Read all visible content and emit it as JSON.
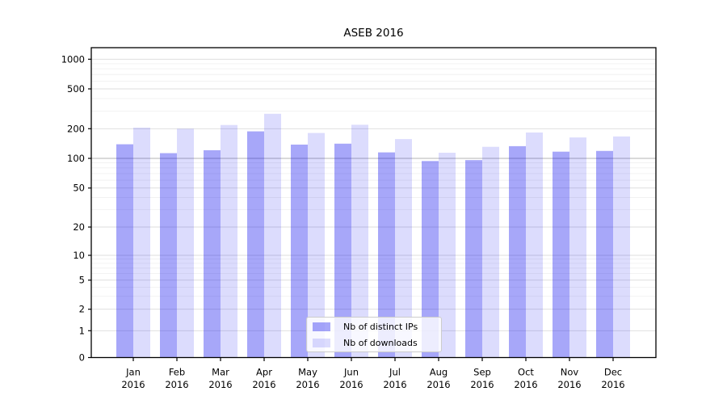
{
  "figure_title": "ASEB 2016",
  "chart_data": {
    "type": "bar",
    "title": "ASEB 2016",
    "xlabel": "",
    "ylabel": "",
    "categories": [
      "Jan 2016",
      "Feb 2016",
      "Mar 2016",
      "Apr 2016",
      "May 2016",
      "Jun 2016",
      "Jul 2016",
      "Aug 2016",
      "Sep 2016",
      "Oct 2016",
      "Nov 2016",
      "Dec 2016"
    ],
    "series": [
      {
        "name": "Nb of distinct IPs",
        "opacity": 0.345,
        "values": [
          139,
          113,
          121,
          188,
          138,
          141,
          115,
          94,
          96,
          133,
          117,
          119
        ]
      },
      {
        "name": "Nb of downloads",
        "opacity": 0.137,
        "values": [
          205,
          200,
          218,
          282,
          181,
          219,
          157,
          114,
          131,
          183,
          163,
          167
        ]
      }
    ],
    "bar_base_color": "#0000EE",
    "y_ticks": [
      0,
      1,
      2,
      5,
      10,
      20,
      50,
      100,
      200,
      500,
      1000
    ],
    "y_minor_ticks": [
      3,
      4,
      6,
      7,
      8,
      9,
      30,
      40,
      60,
      70,
      80,
      90,
      300,
      400,
      600,
      700,
      800,
      900
    ],
    "y_scale": "asinh (log-like above ~10, linear near 0)",
    "ylim": [
      0,
      1360
    ],
    "grid": true,
    "legend_position": "lower center",
    "colors": {
      "bar_ips_on_white": "#A9A9F8",
      "bar_downloads_on_white": "#DCDCF9",
      "grid_major": "#DCDCDC",
      "grid_minor": "#EFEFEF",
      "grid_100_line": "#B3B3B3",
      "axis": "#000000"
    }
  }
}
